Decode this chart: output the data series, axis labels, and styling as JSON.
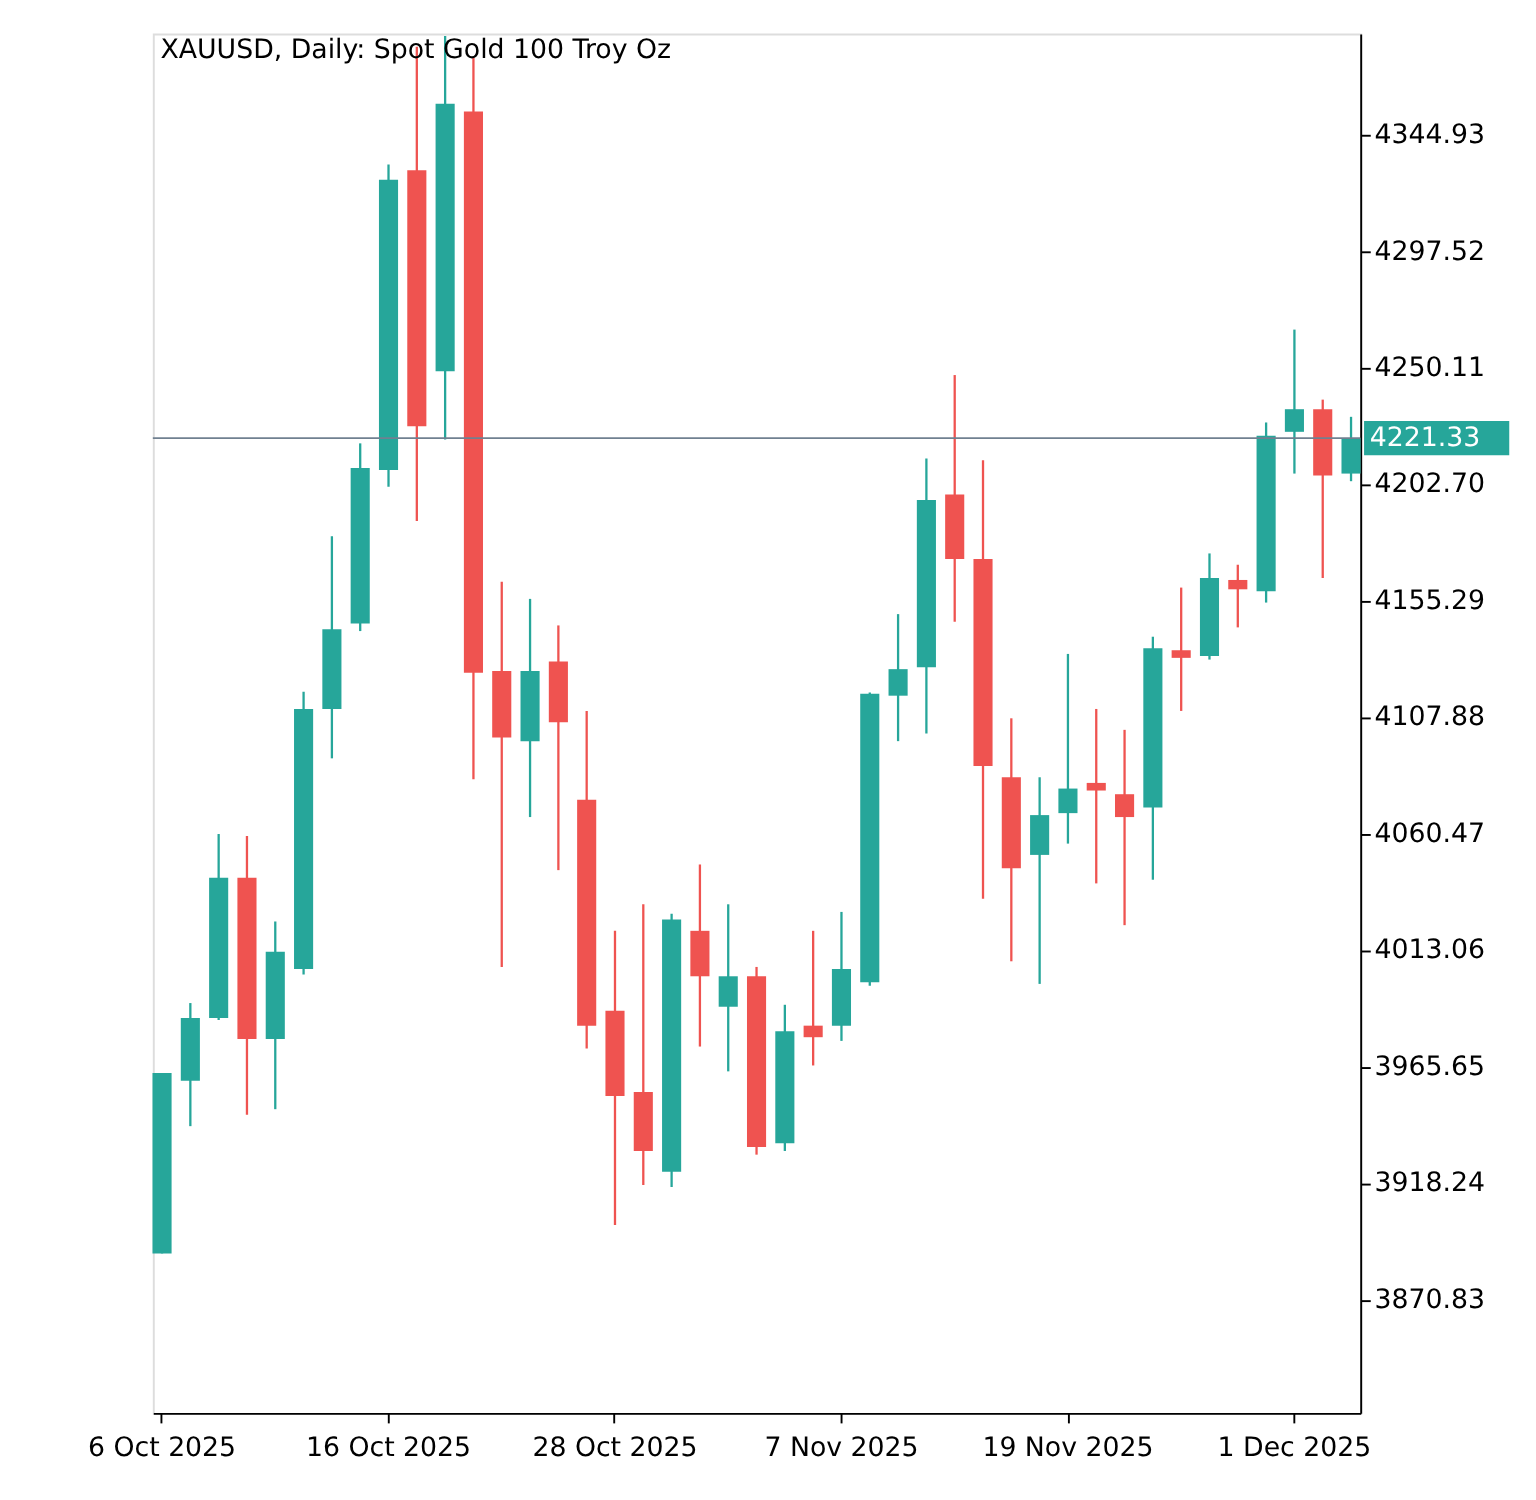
{
  "chart_data": {
    "type": "candlestick",
    "title": "XAUUSD, Daily:  Spot Gold 100 Troy Oz",
    "categories": [
      "6 Oct 2025",
      null,
      null,
      null,
      null,
      null,
      null,
      null,
      "16 Oct 2025",
      null,
      null,
      null,
      null,
      null,
      null,
      null,
      "28 Oct 2025",
      null,
      null,
      null,
      null,
      null,
      null,
      null,
      "7 Nov 2025",
      null,
      null,
      null,
      null,
      null,
      null,
      null,
      "19 Nov 2025",
      null,
      null,
      null,
      null,
      null,
      null,
      null,
      "1 Dec 2025",
      null,
      null
    ],
    "ohlc": [
      [
        3889.5,
        3962.9,
        3889.5,
        3962.9
      ],
      [
        3959.8,
        3991.4,
        3941.3,
        3985.3
      ],
      [
        3985.3,
        4060.2,
        3984.5,
        4042.4
      ],
      [
        4042.4,
        4059.4,
        3945.9,
        3976.8
      ],
      [
        3976.8,
        4024.6,
        3948.2,
        4012.3
      ],
      [
        4005.3,
        4118.1,
        4003.0,
        4111.1
      ],
      [
        4111.1,
        4181.4,
        4091.0,
        4143.5
      ],
      [
        4145.9,
        4219.2,
        4142.8,
        4209.2
      ],
      [
        4208.4,
        4332.7,
        4201.5,
        4326.5
      ],
      [
        4330.4,
        4380.6,
        4187.6,
        4226.2
      ],
      [
        4248.6,
        4385.0,
        4220.8,
        4357.4
      ],
      [
        4354.3,
        4376.0,
        4082.5,
        4125.8
      ],
      [
        4126.6,
        4162.9,
        4006.1,
        4099.5
      ],
      [
        4098.0,
        4155.9,
        4067.1,
        4126.6
      ],
      [
        4130.4,
        4145.1,
        4045.5,
        4105.7
      ],
      [
        4074.1,
        4110.3,
        3972.9,
        3982.2
      ],
      [
        3988.3,
        4020.8,
        3901.1,
        3953.6
      ],
      [
        3955.2,
        4031.6,
        3917.3,
        3931.2
      ],
      [
        3922.7,
        4027.7,
        3916.5,
        4025.4
      ],
      [
        4020.8,
        4047.8,
        3973.7,
        4002.3
      ],
      [
        3989.9,
        4031.6,
        3963.6,
        4002.3
      ],
      [
        4002.3,
        4006.1,
        3929.7,
        3932.8
      ],
      [
        3934.3,
        3990.7,
        3931.2,
        3979.9
      ],
      [
        3982.2,
        4020.8,
        3966.0,
        3977.5
      ],
      [
        3982.2,
        4028.5,
        3976.0,
        4005.3
      ],
      [
        3999.9,
        4117.8,
        3998.4,
        4117.3
      ],
      [
        4116.5,
        4149.7,
        4098.0,
        4127.3
      ],
      [
        4128.1,
        4213.0,
        4101.1,
        4196.1
      ],
      [
        4198.4,
        4247.0,
        4146.6,
        4172.1
      ],
      [
        4172.1,
        4212.3,
        4033.9,
        4087.9
      ],
      [
        4083.3,
        4107.3,
        4008.4,
        4046.3
      ],
      [
        4051.7,
        4083.3,
        3999.2,
        4067.9
      ],
      [
        4068.7,
        4133.5,
        4056.3,
        4078.7
      ],
      [
        4081.0,
        4111.1,
        4040.1,
        4077.9
      ],
      [
        4076.4,
        4102.6,
        4023.1,
        4067.1
      ],
      [
        4071.0,
        4140.5,
        4041.6,
        4135.8
      ],
      [
        4135.0,
        4160.5,
        4110.3,
        4131.9
      ],
      [
        4132.7,
        4174.4,
        4131.2,
        4164.4
      ],
      [
        4163.6,
        4169.8,
        4144.3,
        4159.8
      ],
      [
        4159.0,
        4227.7,
        4154.4,
        4222.3
      ],
      [
        4223.9,
        4265.5,
        4206.9,
        4233.1
      ],
      [
        4233.1,
        4237.0,
        4164.4,
        4206.1
      ],
      [
        4206.9,
        4230.0,
        4203.8,
        4221.3
      ]
    ],
    "colors": [
      "#26a69a",
      "#26a69a",
      "#26a69a",
      "#ef5350",
      "#26a69a",
      "#26a69a",
      "#26a69a",
      "#26a69a",
      "#26a69a",
      "#ef5350",
      "#26a69a",
      "#ef5350",
      "#ef5350",
      "#26a69a",
      "#ef5350",
      "#ef5350",
      "#ef5350",
      "#ef5350",
      "#26a69a",
      "#ef5350",
      "#26a69a",
      "#ef5350",
      "#26a69a",
      "#ef5350",
      "#26a69a",
      "#26a69a",
      "#26a69a",
      "#26a69a",
      "#ef5350",
      "#ef5350",
      "#ef5350",
      "#26a69a",
      "#26a69a",
      "#ef5350",
      "#ef5350",
      "#26a69a",
      "#ef5350",
      "#26a69a",
      "#ef5350",
      "#26a69a",
      "#26a69a",
      "#ef5350",
      "#26a69a"
    ],
    "ylim": [
      3824.6,
      4386.0
    ],
    "yticks": [
      3870.83,
      3918.24,
      3965.65,
      4013.06,
      4060.47,
      4107.88,
      4155.29,
      {
        "value": 4202.7,
        "label": "4202.70"
      },
      4250.11,
      4297.52,
      4344.93
    ],
    "ref_lines": [
      {
        "axis": "y",
        "value": 4221.33,
        "label": "4221.33",
        "color": "#708090"
      }
    ],
    "grid": false
  }
}
